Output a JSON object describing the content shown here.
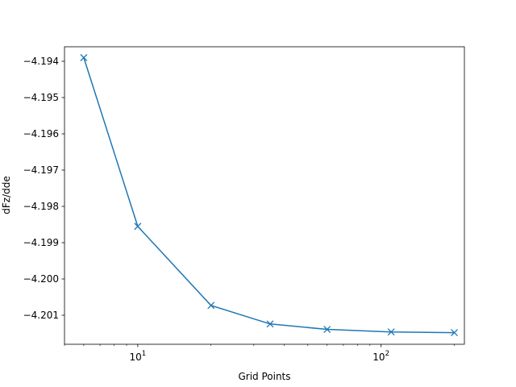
{
  "chart_data": {
    "type": "line",
    "title": "",
    "xlabel": "Grid Points",
    "ylabel": "dFz/dde",
    "x_scale": "log",
    "xlim": [
      5,
      220
    ],
    "ylim": [
      -4.2018,
      -4.1936
    ],
    "x_ticks": [
      {
        "value": 10,
        "base": "10",
        "exp": "1"
      },
      {
        "value": 100,
        "base": "10",
        "exp": "2"
      }
    ],
    "x_minor_ticks": [
      5,
      6,
      7,
      8,
      9,
      20,
      30,
      40,
      50,
      60,
      70,
      80,
      90,
      200
    ],
    "y_ticks": [
      {
        "value": -4.194,
        "label": "−4.194"
      },
      {
        "value": -4.195,
        "label": "−4.195"
      },
      {
        "value": -4.196,
        "label": "−4.196"
      },
      {
        "value": -4.197,
        "label": "−4.197"
      },
      {
        "value": -4.198,
        "label": "−4.198"
      },
      {
        "value": -4.199,
        "label": "−4.199"
      },
      {
        "value": -4.2,
        "label": "−4.200"
      },
      {
        "value": -4.201,
        "label": "−4.201"
      }
    ],
    "grid": false,
    "marker": "x",
    "series": [
      {
        "color": "#1f77b4",
        "x": [
          6,
          10,
          20,
          35,
          60,
          110,
          200
        ],
        "y": [
          -4.1939,
          -4.19855,
          -4.20073,
          -4.20124,
          -4.20139,
          -4.20146,
          -4.20148
        ]
      }
    ]
  }
}
